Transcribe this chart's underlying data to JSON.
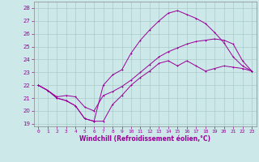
{
  "xlabel": "Windchill (Refroidissement éolien,°C)",
  "ylabel": "",
  "xlim": [
    -0.5,
    23.5
  ],
  "ylim": [
    18.8,
    28.5
  ],
  "yticks": [
    19,
    20,
    21,
    22,
    23,
    24,
    25,
    26,
    27,
    28
  ],
  "xticks": [
    0,
    1,
    2,
    3,
    4,
    5,
    6,
    7,
    8,
    9,
    10,
    11,
    12,
    13,
    14,
    15,
    16,
    17,
    18,
    19,
    20,
    21,
    22,
    23
  ],
  "background_color": "#cce8e8",
  "grid_color": "#aacccc",
  "line_color": "#990099",
  "spine_color": "#888888",
  "curve1_x": [
    0,
    1,
    2,
    3,
    4,
    5,
    6,
    7,
    8,
    9,
    10,
    11,
    12,
    13,
    14,
    15,
    16,
    17,
    18,
    19,
    20,
    21,
    22,
    23
  ],
  "curve1_y": [
    22.0,
    21.6,
    21.0,
    20.8,
    20.4,
    19.4,
    19.2,
    19.2,
    20.5,
    21.2,
    22.0,
    22.6,
    23.1,
    23.7,
    23.9,
    23.5,
    23.9,
    23.5,
    23.1,
    23.3,
    23.5,
    23.4,
    23.3,
    23.1
  ],
  "curve2_x": [
    0,
    1,
    2,
    3,
    4,
    5,
    6,
    7,
    8,
    9,
    10,
    11,
    12,
    13,
    14,
    15,
    16,
    17,
    18,
    19,
    20,
    21,
    22,
    23
  ],
  "curve2_y": [
    22.0,
    21.6,
    21.0,
    20.8,
    20.4,
    19.4,
    19.2,
    22.0,
    22.8,
    23.2,
    24.5,
    25.5,
    26.3,
    27.0,
    27.6,
    27.8,
    27.5,
    27.2,
    26.8,
    26.1,
    25.3,
    24.2,
    23.5,
    23.1
  ],
  "curve3_x": [
    0,
    1,
    2,
    3,
    4,
    5,
    6,
    7,
    8,
    9,
    10,
    11,
    12,
    13,
    14,
    15,
    16,
    17,
    18,
    19,
    20,
    21,
    22,
    23
  ],
  "curve3_y": [
    22.0,
    21.6,
    21.1,
    21.2,
    21.1,
    20.3,
    20.0,
    21.2,
    21.5,
    21.9,
    22.4,
    23.0,
    23.6,
    24.2,
    24.6,
    24.9,
    25.2,
    25.4,
    25.5,
    25.6,
    25.5,
    25.2,
    23.9,
    23.1
  ]
}
